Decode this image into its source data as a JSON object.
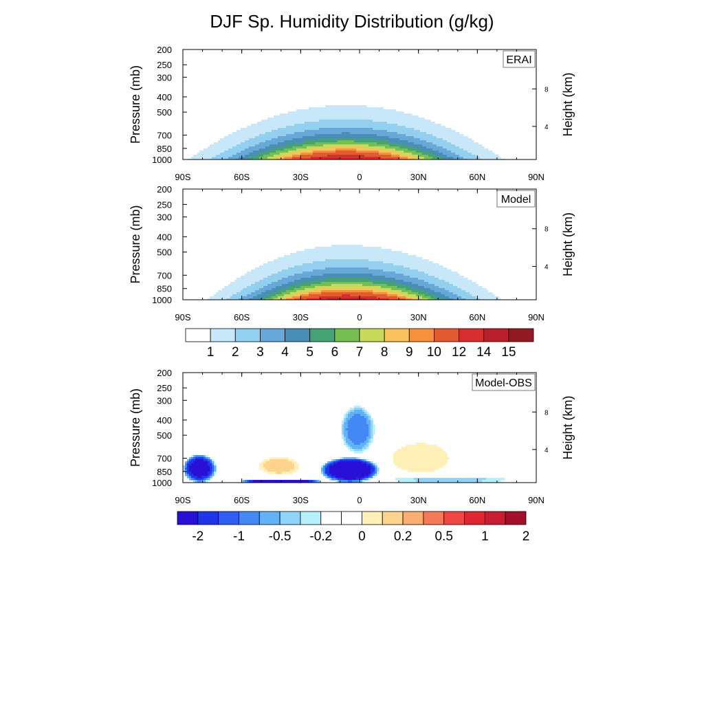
{
  "figure": {
    "title": "DJF Sp. Humidity Distribution (g/kg)"
  },
  "chart_data": [
    {
      "type": "contour",
      "panel_label": "ERAI",
      "ylabel": "Pressure (mb)",
      "ylabel_right": "Height (km)",
      "x_ticks": [
        "90S",
        "60S",
        "30S",
        "0",
        "30N",
        "60N",
        "90N"
      ],
      "x_tick_values": [
        -90,
        -60,
        -30,
        0,
        30,
        60,
        90
      ],
      "y_ticks": [
        200,
        250,
        300,
        400,
        500,
        700,
        850,
        1000
      ],
      "y_scale": "log",
      "y_reversed": true,
      "right_ticks": [
        "8",
        "4"
      ],
      "right_tick_pressures": [
        356,
        616
      ],
      "xlim": [
        -90,
        90
      ],
      "ylim": [
        1000,
        200
      ],
      "fields": {
        "center_lat": -7,
        "west_lat": -81,
        "east_lat": 67,
        "outer_top_pressure": 380,
        "peak_value": 15,
        "profile": "lower_troposphere_maximum_near_equator"
      }
    },
    {
      "type": "contour",
      "panel_label": "Model",
      "ylabel": "Pressure (mb)",
      "ylabel_right": "Height (km)",
      "x_ticks": [
        "90S",
        "60S",
        "30S",
        "0",
        "30N",
        "60N",
        "90N"
      ],
      "x_tick_values": [
        -90,
        -60,
        -30,
        0,
        30,
        60,
        90
      ],
      "y_ticks": [
        200,
        250,
        300,
        400,
        500,
        700,
        850,
        1000
      ],
      "y_scale": "log",
      "y_reversed": true,
      "right_ticks": [
        "8",
        "4"
      ],
      "right_tick_pressures": [
        356,
        616
      ],
      "xlim": [
        -90,
        90
      ],
      "ylim": [
        1000,
        200
      ],
      "fields": {
        "center_lat": -7,
        "west_lat": -72,
        "east_lat": 66,
        "outer_top_pressure": 390,
        "peak_value": 15,
        "profile": "lower_troposphere_maximum_near_equator"
      }
    },
    {
      "type": "contour",
      "panel_label": "Model-OBS",
      "ylabel": "Pressure (mb)",
      "ylabel_right": "Height (km)",
      "x_ticks": [
        "90S",
        "60S",
        "30S",
        "0",
        "30N",
        "60N",
        "90N"
      ],
      "x_tick_values": [
        -90,
        -60,
        -30,
        0,
        30,
        60,
        90
      ],
      "y_ticks": [
        200,
        250,
        300,
        400,
        500,
        700,
        850,
        1000
      ],
      "y_scale": "log",
      "y_reversed": true,
      "right_ticks": [
        "8",
        "4"
      ],
      "right_tick_pressures": [
        356,
        616
      ],
      "xlim": [
        -90,
        90
      ],
      "ylim": [
        1000,
        200
      ],
      "features": [
        {
          "kind": "negative",
          "lat_range": [
            -90,
            -73
          ],
          "pressure_range": [
            660,
            1000
          ],
          "min_value": -1.5
        },
        {
          "kind": "negative",
          "lat_range": [
            -60,
            -20
          ],
          "pressure_range": [
            950,
            1000
          ],
          "min_value": -2
        },
        {
          "kind": "negative",
          "lat_range": [
            -20,
            10
          ],
          "pressure_range": [
            690,
            1000
          ],
          "min_value": -2
        },
        {
          "kind": "negative",
          "lat_range": [
            -10,
            8
          ],
          "pressure_range": [
            320,
            660
          ],
          "min_value": -0.5
        },
        {
          "kind": "positive",
          "lat_range": [
            -52,
            -30
          ],
          "pressure_range": [
            680,
            900
          ],
          "max_value": 0.2
        },
        {
          "kind": "positive",
          "lat_range": [
            14,
            48
          ],
          "pressure_range": [
            540,
            900
          ],
          "max_value": 0.1
        },
        {
          "kind": "negative",
          "lat_range": [
            10,
            82
          ],
          "pressure_range": [
            920,
            1000
          ],
          "min_value": -0.2
        }
      ]
    }
  ],
  "colorbars": [
    {
      "name": "sp-humidity",
      "labels": [
        "1",
        "2",
        "3",
        "4",
        "5",
        "6",
        "7",
        "8",
        "9",
        "10",
        "12",
        "14",
        "15"
      ],
      "colors": [
        "#ffffff",
        "#c8e7f8",
        "#93cfef",
        "#67a8d9",
        "#4a8db5",
        "#45a274",
        "#74be52",
        "#c9d95c",
        "#f8c35c",
        "#f5903c",
        "#e35a33",
        "#d52e2e",
        "#b8202c",
        "#921a22"
      ]
    },
    {
      "name": "difference",
      "labels": [
        "-2",
        "-1",
        "-0.5",
        "-0.2",
        "0",
        "0.2",
        "0.5",
        "1",
        "2"
      ],
      "colors": [
        "#2a0fd7",
        "#1f36e8",
        "#2f5ef2",
        "#4488f6",
        "#63b2f8",
        "#8fd5fb",
        "#b6f0fd",
        "#ffffff",
        "#ffffff",
        "#fff0b8",
        "#fed38e",
        "#fcae71",
        "#f67a57",
        "#f04644",
        "#e02633",
        "#c91d34",
        "#a50f2a"
      ]
    }
  ]
}
